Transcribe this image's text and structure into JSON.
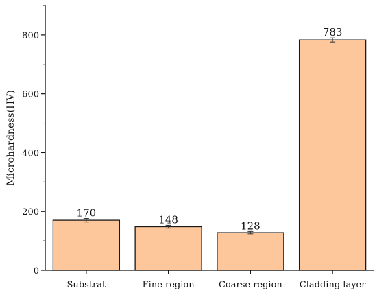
{
  "chart_data": {
    "type": "bar",
    "ylabel": "Microhardness(HV)",
    "categories": [
      "Substrat",
      "Fine region",
      "Coarse region",
      "Cladding layer"
    ],
    "values": [
      170,
      148,
      128,
      783
    ],
    "value_labels": [
      "170",
      "148",
      "128",
      "783"
    ],
    "errors": [
      6,
      5,
      4,
      7
    ],
    "ylim": [
      0,
      900
    ],
    "yticks": [
      0,
      200,
      400,
      600,
      800
    ],
    "ytick_labels": [
      "0",
      "200",
      "400",
      "600",
      "800"
    ],
    "bar_color": "#fdc79b",
    "edge_color": "#1a1a1a",
    "grid": false
  }
}
